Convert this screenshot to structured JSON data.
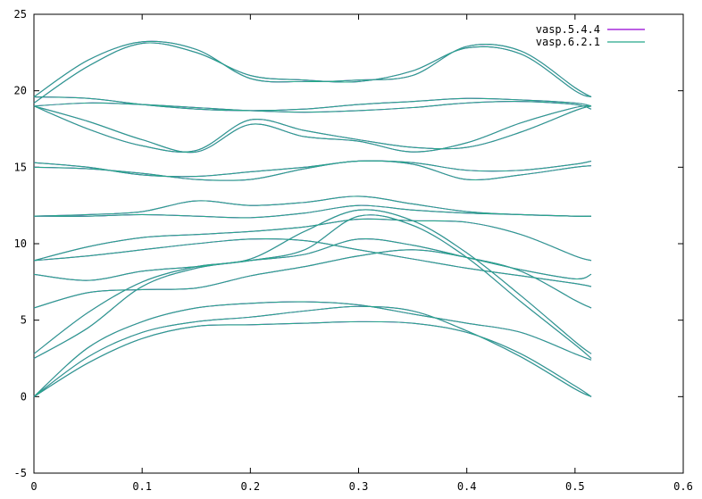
{
  "chart_data": {
    "type": "line",
    "title": "",
    "xlabel": "",
    "ylabel": "",
    "xlim": [
      0,
      0.6
    ],
    "ylim": [
      -5,
      25
    ],
    "xticks": [
      {
        "v": 0,
        "label": "0"
      },
      {
        "v": 0.1,
        "label": "0.1"
      },
      {
        "v": 0.2,
        "label": "0.2"
      },
      {
        "v": 0.3,
        "label": "0.3"
      },
      {
        "v": 0.4,
        "label": "0.4"
      },
      {
        "v": 0.5,
        "label": "0.5"
      },
      {
        "v": 0.6,
        "label": "0.6"
      }
    ],
    "yticks": [
      {
        "v": -5,
        "label": "-5"
      },
      {
        "v": 0,
        "label": "0"
      },
      {
        "v": 5,
        "label": "5"
      },
      {
        "v": 10,
        "label": "10"
      },
      {
        "v": 15,
        "label": "15"
      },
      {
        "v": 20,
        "label": "20"
      },
      {
        "v": 25,
        "label": "25"
      }
    ],
    "grid": false,
    "legend_position": "top-right",
    "x_kpoints": [
      0,
      0.05,
      0.1,
      0.15,
      0.2,
      0.25,
      0.3,
      0.35,
      0.4,
      0.45,
      0.5,
      0.515
    ],
    "series": [
      {
        "name": "vasp.5.4.4",
        "color": "#9400d3",
        "bands": [
          [
            0.0,
            2.2,
            3.8,
            4.6,
            4.7,
            4.8,
            4.9,
            4.8,
            4.2,
            2.8,
            0.7,
            0.0
          ],
          [
            0.0,
            2.6,
            4.2,
            4.9,
            5.2,
            5.6,
            5.9,
            5.6,
            4.3,
            2.6,
            0.5,
            0.0
          ],
          [
            0.0,
            3.2,
            4.9,
            5.8,
            6.1,
            6.2,
            6.0,
            5.4,
            4.8,
            4.2,
            2.8,
            2.4
          ],
          [
            2.5,
            4.5,
            7.2,
            8.4,
            8.9,
            9.6,
            11.8,
            11.2,
            9.1,
            6.2,
            3.4,
            2.5
          ],
          [
            2.8,
            5.5,
            7.5,
            8.5,
            9.0,
            10.8,
            12.2,
            11.5,
            9.4,
            6.6,
            3.6,
            2.8
          ],
          [
            5.8,
            6.8,
            7.0,
            7.1,
            7.9,
            8.5,
            9.2,
            9.6,
            9.1,
            8.2,
            6.3,
            5.8
          ],
          [
            8.0,
            7.6,
            8.2,
            8.5,
            8.9,
            9.3,
            10.3,
            9.9,
            9.1,
            8.3,
            7.7,
            8.0
          ],
          [
            8.9,
            9.2,
            9.6,
            10.0,
            10.3,
            10.2,
            9.6,
            9.0,
            8.4,
            7.9,
            7.4,
            7.2
          ],
          [
            8.9,
            9.8,
            10.4,
            10.6,
            10.8,
            11.1,
            11.6,
            11.5,
            11.4,
            10.6,
            9.2,
            8.9
          ],
          [
            11.8,
            11.8,
            11.9,
            11.8,
            11.7,
            12.0,
            12.5,
            12.2,
            12.0,
            11.9,
            11.8,
            11.8
          ],
          [
            11.8,
            11.9,
            12.1,
            12.8,
            12.5,
            12.7,
            13.1,
            12.6,
            12.1,
            11.9,
            11.8,
            11.8
          ],
          [
            15.3,
            15.0,
            14.5,
            14.4,
            14.7,
            15.0,
            15.4,
            15.3,
            14.8,
            14.8,
            15.2,
            15.4
          ],
          [
            15.0,
            14.9,
            14.6,
            14.2,
            14.2,
            14.9,
            15.4,
            15.2,
            14.2,
            14.5,
            15.0,
            15.1
          ],
          [
            19.0,
            17.5,
            16.4,
            16.1,
            18.1,
            17.4,
            16.8,
            16.3,
            16.3,
            17.3,
            18.7,
            19.0
          ],
          [
            19.0,
            18.0,
            16.8,
            16.0,
            17.8,
            17.0,
            16.7,
            16.0,
            16.6,
            17.9,
            18.9,
            19.0
          ],
          [
            19.6,
            19.5,
            19.1,
            18.8,
            18.7,
            18.8,
            19.1,
            19.3,
            19.5,
            19.4,
            19.2,
            19.0
          ],
          [
            19.0,
            19.2,
            19.1,
            18.9,
            18.7,
            18.6,
            18.7,
            18.9,
            19.2,
            19.3,
            19.1,
            18.8
          ],
          [
            19.2,
            21.6,
            23.1,
            22.5,
            21.0,
            20.7,
            20.6,
            21.3,
            22.8,
            22.4,
            20.0,
            19.6
          ],
          [
            19.6,
            22.0,
            23.2,
            22.7,
            20.8,
            20.6,
            20.7,
            21.0,
            22.9,
            22.6,
            20.2,
            19.6
          ]
        ]
      },
      {
        "name": "vasp.6.2.1",
        "color": "#26a88a",
        "bands": [
          [
            0.0,
            2.2,
            3.8,
            4.6,
            4.7,
            4.8,
            4.9,
            4.8,
            4.2,
            2.8,
            0.7,
            0.0
          ],
          [
            0.0,
            2.6,
            4.2,
            4.9,
            5.2,
            5.6,
            5.9,
            5.6,
            4.3,
            2.6,
            0.5,
            0.0
          ],
          [
            0.0,
            3.2,
            4.9,
            5.8,
            6.1,
            6.2,
            6.0,
            5.4,
            4.8,
            4.2,
            2.8,
            2.4
          ],
          [
            2.5,
            4.5,
            7.2,
            8.4,
            8.9,
            9.6,
            11.8,
            11.2,
            9.1,
            6.2,
            3.4,
            2.5
          ],
          [
            2.8,
            5.5,
            7.5,
            8.5,
            9.0,
            10.8,
            12.2,
            11.5,
            9.4,
            6.6,
            3.6,
            2.8
          ],
          [
            5.8,
            6.8,
            7.0,
            7.1,
            7.9,
            8.5,
            9.2,
            9.6,
            9.1,
            8.2,
            6.3,
            5.8
          ],
          [
            8.0,
            7.6,
            8.2,
            8.5,
            8.9,
            9.3,
            10.3,
            9.9,
            9.1,
            8.3,
            7.7,
            8.0
          ],
          [
            8.9,
            9.2,
            9.6,
            10.0,
            10.3,
            10.2,
            9.6,
            9.0,
            8.4,
            7.9,
            7.4,
            7.2
          ],
          [
            8.9,
            9.8,
            10.4,
            10.6,
            10.8,
            11.1,
            11.6,
            11.5,
            11.4,
            10.6,
            9.2,
            8.9
          ],
          [
            11.8,
            11.8,
            11.9,
            11.8,
            11.7,
            12.0,
            12.5,
            12.2,
            12.0,
            11.9,
            11.8,
            11.8
          ],
          [
            11.8,
            11.9,
            12.1,
            12.8,
            12.5,
            12.7,
            13.1,
            12.6,
            12.1,
            11.9,
            11.8,
            11.8
          ],
          [
            15.3,
            15.0,
            14.5,
            14.4,
            14.7,
            15.0,
            15.4,
            15.3,
            14.8,
            14.8,
            15.2,
            15.4
          ],
          [
            15.0,
            14.9,
            14.6,
            14.2,
            14.2,
            14.9,
            15.4,
            15.2,
            14.2,
            14.5,
            15.0,
            15.1
          ],
          [
            19.0,
            17.5,
            16.4,
            16.1,
            18.1,
            17.4,
            16.8,
            16.3,
            16.3,
            17.3,
            18.7,
            19.0
          ],
          [
            19.0,
            18.0,
            16.8,
            16.0,
            17.8,
            17.0,
            16.7,
            16.0,
            16.6,
            17.9,
            18.9,
            19.0
          ],
          [
            19.6,
            19.5,
            19.1,
            18.8,
            18.7,
            18.8,
            19.1,
            19.3,
            19.5,
            19.4,
            19.2,
            19.0
          ],
          [
            19.0,
            19.2,
            19.1,
            18.9,
            18.7,
            18.6,
            18.7,
            18.9,
            19.2,
            19.3,
            19.1,
            18.8
          ],
          [
            19.2,
            21.6,
            23.1,
            22.5,
            21.0,
            20.7,
            20.6,
            21.3,
            22.8,
            22.4,
            20.0,
            19.6
          ],
          [
            19.6,
            22.0,
            23.2,
            22.7,
            20.8,
            20.6,
            20.7,
            21.0,
            22.9,
            22.6,
            20.2,
            19.6
          ]
        ]
      }
    ]
  }
}
